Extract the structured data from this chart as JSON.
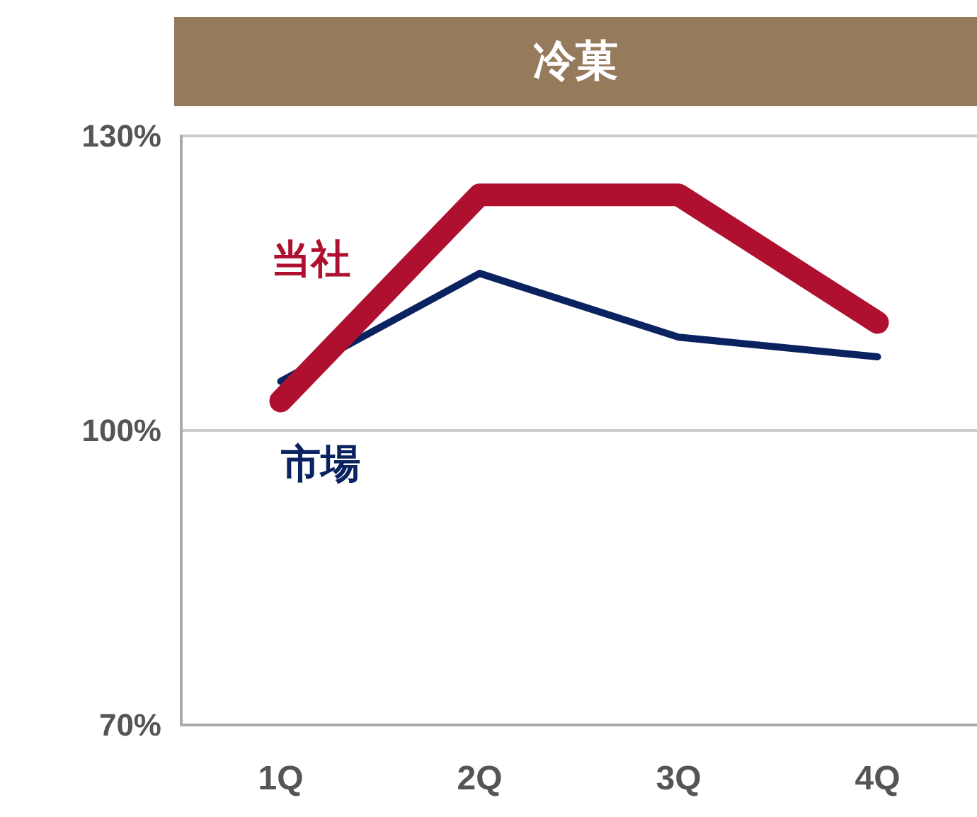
{
  "chart_data": {
    "type": "line",
    "title": "冷菓",
    "categories": [
      "1Q",
      "2Q",
      "3Q",
      "4Q"
    ],
    "series": [
      {
        "name": "当社",
        "color": "#b01030",
        "values": [
          103,
          124,
          124,
          111
        ]
      },
      {
        "name": "市場",
        "color": "#0a2260",
        "values": [
          105,
          116,
          109.5,
          107.5
        ]
      }
    ],
    "ylim": [
      70,
      130
    ],
    "yticks": [
      {
        "value": 70,
        "label": "70%"
      },
      {
        "value": 100,
        "label": "100%"
      },
      {
        "value": 130,
        "label": "130%"
      }
    ],
    "grid": "y",
    "marker": "none",
    "line_style": "solid",
    "legend": false
  }
}
